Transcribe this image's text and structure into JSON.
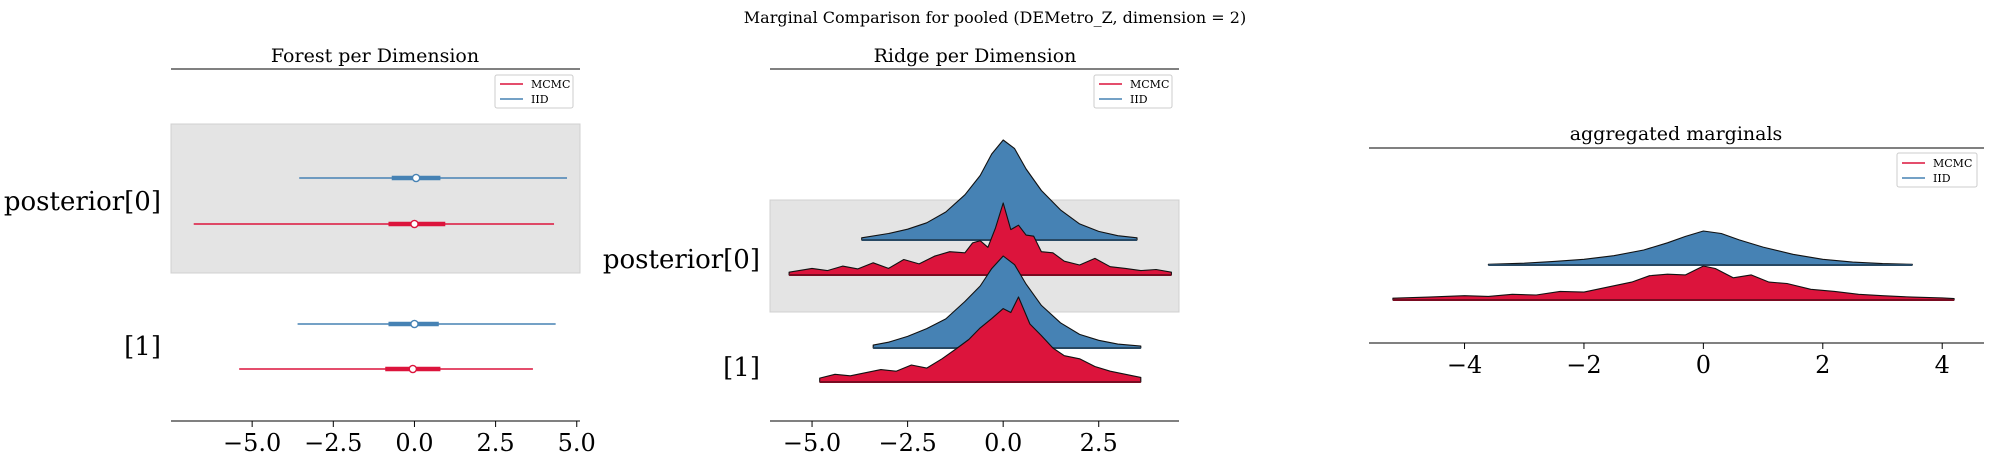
{
  "figure": {
    "suptitle": "Marginal Comparison for pooled (DEMetro_Z, dimension = 2)"
  },
  "colors": {
    "mcmc": "#dc143c",
    "iid": "#4682b4",
    "band": "#e4e4e4"
  },
  "chart_data": [
    {
      "type": "forest",
      "title": "Forest per Dimension",
      "row_labels": [
        "posterior[0]",
        "[1]"
      ],
      "xlim": [
        -7.5,
        5.1
      ],
      "xticks": [
        -5.0,
        -2.5,
        0.0,
        2.5,
        5.0
      ],
      "xtick_labels": [
        "−5.0",
        "−2.5",
        "0.0",
        "2.5",
        "5.0"
      ],
      "legend": {
        "entries": [
          "MCMC",
          "IID"
        ],
        "position": "top-right"
      },
      "rows": [
        {
          "label": "posterior[0]",
          "shaded": true,
          "series": [
            {
              "name": "IID",
              "min": -3.55,
              "q1": -0.7,
              "median": 0.05,
              "q3": 0.8,
              "max": 4.7
            },
            {
              "name": "MCMC",
              "min": -6.8,
              "q1": -0.8,
              "median": 0.0,
              "q3": 0.95,
              "max": 4.3
            }
          ]
        },
        {
          "label": "[1]",
          "shaded": false,
          "series": [
            {
              "name": "IID",
              "min": -3.6,
              "q1": -0.8,
              "median": 0.0,
              "q3": 0.75,
              "max": 4.35
            },
            {
              "name": "MCMC",
              "min": -5.4,
              "q1": -0.9,
              "median": -0.05,
              "q3": 0.8,
              "max": 3.65
            }
          ]
        }
      ]
    },
    {
      "type": "ridge",
      "title": "Ridge per Dimension",
      "row_labels": [
        "posterior[0]",
        "[1]"
      ],
      "xlim": [
        -6.1,
        4.6
      ],
      "xticks": [
        -5.0,
        -2.5,
        0.0,
        2.5
      ],
      "xtick_labels": [
        "−5.0",
        "−2.5",
        "0.0",
        "2.5"
      ],
      "legend": {
        "entries": [
          "MCMC",
          "IID"
        ],
        "position": "top-right"
      },
      "rows": [
        {
          "label": "posterior[0]",
          "shaded": true,
          "series": [
            {
              "name": "IID",
              "x": [
                -3.7,
                -3.0,
                -2.5,
                -2.0,
                -1.5,
                -1.0,
                -0.6,
                -0.3,
                0.0,
                0.3,
                0.6,
                1.0,
                1.5,
                2.0,
                2.5,
                3.0,
                3.5
              ],
              "density": [
                0.02,
                0.06,
                0.1,
                0.16,
                0.26,
                0.42,
                0.6,
                0.8,
                0.93,
                0.85,
                0.66,
                0.46,
                0.28,
                0.15,
                0.08,
                0.04,
                0.02
              ]
            },
            {
              "name": "MCMC",
              "x": [
                -5.6,
                -5.0,
                -4.6,
                -4.2,
                -3.8,
                -3.4,
                -3.0,
                -2.6,
                -2.2,
                -1.8,
                -1.4,
                -1.0,
                -0.8,
                -0.6,
                -0.4,
                -0.2,
                0.0,
                0.2,
                0.4,
                0.6,
                0.8,
                1.0,
                1.3,
                1.6,
                2.0,
                2.4,
                2.8,
                3.2,
                3.6,
                4.0,
                4.4
              ],
              "density": [
                0.05,
                0.12,
                0.08,
                0.16,
                0.11,
                0.22,
                0.12,
                0.28,
                0.2,
                0.34,
                0.42,
                0.4,
                0.58,
                0.62,
                0.5,
                0.85,
                1.3,
                0.82,
                0.9,
                0.72,
                0.7,
                0.42,
                0.4,
                0.25,
                0.18,
                0.3,
                0.15,
                0.12,
                0.08,
                0.1,
                0.05
              ]
            }
          ]
        },
        {
          "label": "[1]",
          "shaded": false,
          "series": [
            {
              "name": "IID",
              "x": [
                -3.4,
                -3.0,
                -2.5,
                -2.0,
                -1.5,
                -1.0,
                -0.6,
                -0.3,
                0.0,
                0.3,
                0.6,
                1.0,
                1.5,
                2.0,
                2.5,
                3.0,
                3.6
              ],
              "density": [
                0.03,
                0.06,
                0.12,
                0.2,
                0.3,
                0.48,
                0.64,
                0.82,
                0.95,
                0.86,
                0.66,
                0.44,
                0.26,
                0.14,
                0.08,
                0.04,
                0.02
              ]
            },
            {
              "name": "MCMC",
              "x": [
                -4.8,
                -4.4,
                -4.0,
                -3.6,
                -3.2,
                -2.8,
                -2.4,
                -2.0,
                -1.6,
                -1.2,
                -0.9,
                -0.6,
                -0.3,
                0.0,
                0.2,
                0.4,
                0.7,
                1.0,
                1.3,
                1.6,
                2.0,
                2.4,
                2.8,
                3.2,
                3.6
              ],
              "density": [
                0.05,
                0.1,
                0.08,
                0.12,
                0.16,
                0.14,
                0.22,
                0.18,
                0.3,
                0.44,
                0.55,
                0.7,
                0.82,
                0.95,
                0.9,
                1.1,
                0.75,
                0.6,
                0.44,
                0.34,
                0.3,
                0.2,
                0.14,
                0.1,
                0.06
              ]
            }
          ]
        }
      ]
    },
    {
      "type": "ridge",
      "title": "aggregated marginals",
      "xlim": [
        -5.6,
        4.7
      ],
      "xticks": [
        -4,
        -2,
        0,
        2,
        4
      ],
      "xtick_labels": [
        "−4",
        "−2",
        "0",
        "2",
        "4"
      ],
      "legend": {
        "entries": [
          "MCMC",
          "IID"
        ],
        "position": "top-right"
      },
      "rows": [
        {
          "label": "",
          "shaded": false,
          "series": [
            {
              "name": "IID",
              "x": [
                -3.6,
                -3.0,
                -2.5,
                -2.0,
                -1.5,
                -1.0,
                -0.6,
                -0.3,
                0.0,
                0.3,
                0.6,
                1.0,
                1.5,
                2.0,
                2.5,
                3.0,
                3.5
              ],
              "density": [
                0.02,
                0.05,
                0.1,
                0.16,
                0.26,
                0.42,
                0.62,
                0.8,
                0.95,
                0.88,
                0.7,
                0.5,
                0.3,
                0.16,
                0.08,
                0.04,
                0.02
              ]
            },
            {
              "name": "MCMC",
              "x": [
                -5.2,
                -4.6,
                -4.0,
                -3.6,
                -3.2,
                -2.8,
                -2.4,
                -2.0,
                -1.6,
                -1.2,
                -0.9,
                -0.6,
                -0.3,
                0.0,
                0.2,
                0.5,
                0.8,
                1.1,
                1.4,
                1.8,
                2.2,
                2.6,
                3.0,
                3.5,
                4.0,
                4.2
              ],
              "density": [
                0.05,
                0.08,
                0.12,
                0.1,
                0.16,
                0.14,
                0.24,
                0.22,
                0.36,
                0.5,
                0.68,
                0.72,
                0.7,
                0.95,
                0.88,
                0.62,
                0.7,
                0.5,
                0.46,
                0.3,
                0.24,
                0.16,
                0.12,
                0.08,
                0.06,
                0.04
              ]
            }
          ]
        }
      ]
    }
  ]
}
